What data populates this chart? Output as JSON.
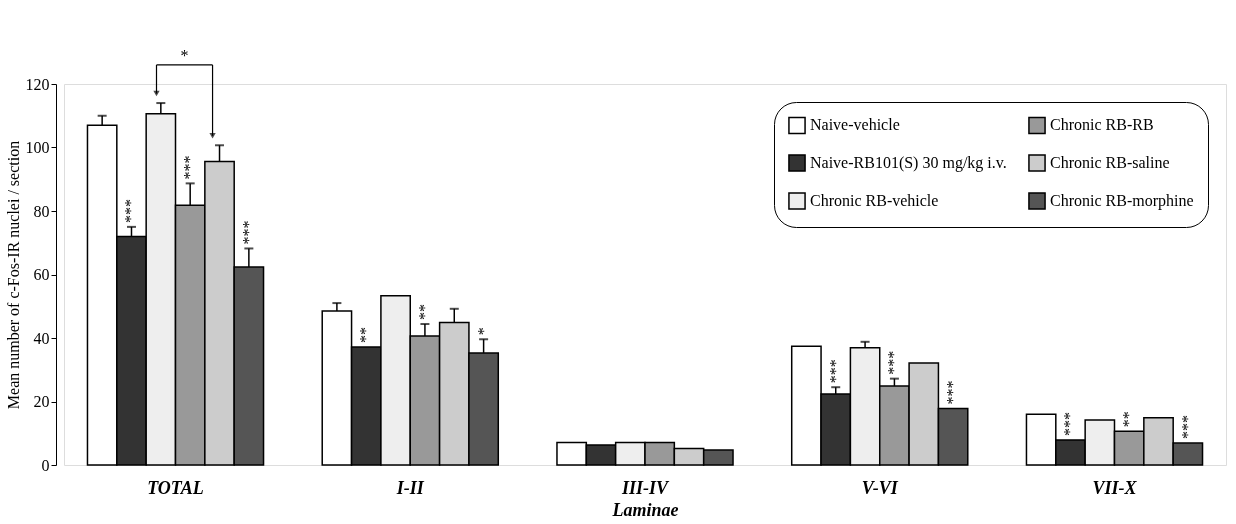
{
  "chart_data": {
    "type": "bar",
    "xlabel": "Laminae",
    "ylabel": "Mean number of c-Fos-IR nuclei / section",
    "categories": [
      "TOTAL",
      "I-II",
      "III-IV",
      "V-VI",
      "VII-X"
    ],
    "ylim": [
      0,
      120
    ],
    "yticks": [
      0,
      20,
      40,
      60,
      80,
      100,
      120
    ],
    "grid": false,
    "legend": "top right",
    "annotations": [
      "*"
    ],
    "series": [
      {
        "name": "Naive-vehicle",
        "color": "#ffffff",
        "values": [
          107,
          48.5,
          7.1,
          37.4,
          16.0
        ],
        "errors": [
          [
            107,
            110
          ],
          [
            48.5,
            51
          ],
          null,
          null,
          null
        ]
      },
      {
        "name": "Naive-RB101(S) 30 mg/kg i.v.",
        "color": "#333333",
        "values": [
          72,
          37.2,
          6.3,
          22.4,
          7.9
        ],
        "errors": [
          [
            72,
            75
          ],
          null,
          null,
          [
            22.4,
            24.5
          ],
          null
        ],
        "value_labels": [
          "***",
          "**",
          null,
          "***",
          "***"
        ]
      },
      {
        "name": "Chronic RB-vehicle",
        "color": "#eeeeee",
        "values": [
          110.6,
          53.3,
          7.1,
          36.9,
          14.2
        ],
        "errors": [
          [
            110.6,
            114
          ],
          null,
          null,
          [
            36.9,
            38.8
          ],
          null
        ]
      },
      {
        "name": "Chronic RB-RB",
        "color": "#999999",
        "values": [
          81.8,
          40.6,
          7.1,
          24.9,
          10.6
        ],
        "errors": [
          [
            81.8,
            88.7
          ],
          [
            40.6,
            44.4
          ],
          null,
          [
            24.9,
            27.2
          ],
          null
        ],
        "value_labels": [
          "***",
          "**",
          null,
          "***",
          "**"
        ]
      },
      {
        "name": "Chronic RB-saline",
        "color": "#cccccc",
        "values": [
          95.6,
          44.9,
          5.2,
          32.1,
          14.9
        ],
        "errors": [
          [
            95.6,
            100.7
          ],
          [
            44.9,
            49.2
          ],
          null,
          null,
          null
        ]
      },
      {
        "name": "Chronic RB-morphine",
        "color": "#555555",
        "values": [
          62.4,
          35.3,
          4.7,
          17.8,
          6.9
        ],
        "errors": [
          [
            62.4,
            68.2
          ],
          [
            35.3,
            39.6
          ],
          null,
          null,
          null
        ],
        "value_labels": [
          "***",
          "*",
          null,
          "***",
          "***"
        ]
      }
    ]
  }
}
